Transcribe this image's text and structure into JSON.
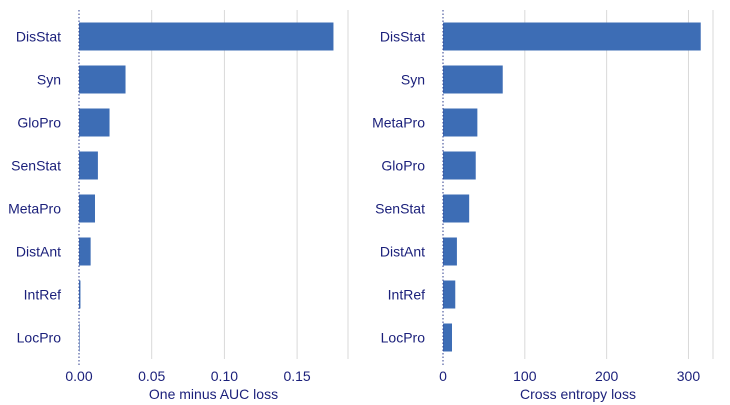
{
  "chart_data": [
    {
      "type": "bar",
      "orientation": "horizontal",
      "categories": [
        "DisStat",
        "Syn",
        "GloPro",
        "SenStat",
        "MetaPro",
        "DistAnt",
        "IntRef",
        "LocPro"
      ],
      "values": [
        0.175,
        0.032,
        0.021,
        0.013,
        0.011,
        0.008,
        0.001,
        0.0003
      ],
      "xlabel": "One minus AUC loss",
      "xlim": [
        0,
        0.185
      ],
      "xticks": [
        0,
        0.05,
        0.1,
        0.15
      ],
      "xtick_labels": [
        "0.00",
        "0.05",
        "0.10",
        "0.15"
      ],
      "grid": true,
      "bar_color": "#3d6db5"
    },
    {
      "type": "bar",
      "orientation": "horizontal",
      "categories": [
        "DisStat",
        "Syn",
        "MetaPro",
        "GloPro",
        "SenStat",
        "DistAnt",
        "IntRef",
        "LocPro"
      ],
      "values": [
        315,
        73,
        42,
        40,
        32,
        17,
        15,
        11
      ],
      "xlabel": "Cross entropy loss",
      "xlim": [
        0,
        330
      ],
      "xticks": [
        0,
        100,
        200,
        300
      ],
      "xtick_labels": [
        "0",
        "100",
        "200",
        "300"
      ],
      "grid": true,
      "bar_color": "#3d6db5"
    }
  ]
}
